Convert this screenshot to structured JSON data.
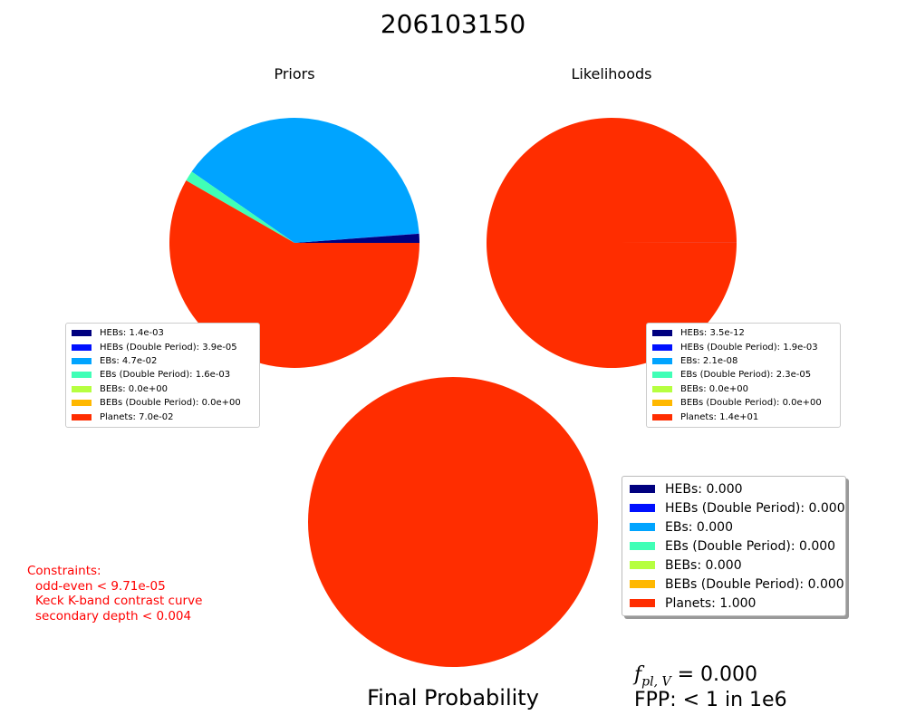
{
  "title": "206103150",
  "colors": {
    "HEBs": "#00007f",
    "HEBs (Double Period)": "#0010ff",
    "EBs": "#00a4ff",
    "EBs (Double Period)": "#40ffb6",
    "BEBs": "#b6ff40",
    "BEBs (Double Period)": "#ffb800",
    "Planets": "#ff2d00"
  },
  "chart_data": [
    {
      "type": "pie",
      "title": "Priors",
      "labels": [
        "HEBs",
        "HEBs (Double Period)",
        "EBs",
        "EBs (Double Period)",
        "BEBs",
        "BEBs (Double Period)",
        "Planets"
      ],
      "values": [
        0.0014,
        3.9e-05,
        0.047,
        0.0016,
        0.0,
        0.0,
        0.07
      ],
      "legend_labels": [
        "HEBs: 1.4e-03",
        "HEBs (Double Period): 3.9e-05",
        "EBs: 4.7e-02",
        "EBs (Double Period): 1.6e-03",
        "BEBs: 0.0e+00",
        "BEBs (Double Period): 0.0e+00",
        "Planets: 7.0e-02"
      ],
      "legend_placement": "lower-left"
    },
    {
      "type": "pie",
      "title": "Likelihoods",
      "labels": [
        "HEBs",
        "HEBs (Double Period)",
        "EBs",
        "EBs (Double Period)",
        "BEBs",
        "BEBs (Double Period)",
        "Planets"
      ],
      "values": [
        3.5e-12,
        0.0019,
        2.1e-08,
        2.3e-05,
        0.0,
        0.0,
        14.0
      ],
      "legend_labels": [
        "HEBs: 3.5e-12",
        "HEBs (Double Period): 1.9e-03",
        "EBs: 2.1e-08",
        "EBs (Double Period): 2.3e-05",
        "BEBs: 0.0e+00",
        "BEBs (Double Period): 0.0e+00",
        "Planets: 1.4e+01"
      ],
      "legend_placement": "lower-right"
    },
    {
      "type": "pie",
      "title": "Final Probability",
      "labels": [
        "HEBs",
        "HEBs (Double Period)",
        "EBs",
        "EBs (Double Period)",
        "BEBs",
        "BEBs (Double Period)",
        "Planets"
      ],
      "values": [
        0.0,
        0.0,
        0.0,
        0.0,
        0.0,
        0.0,
        1.0
      ],
      "legend_labels": [
        "HEBs: 0.000",
        "HEBs (Double Period): 0.000",
        "EBs: 0.000",
        "EBs (Double Period): 0.000",
        "BEBs: 0.000",
        "BEBs (Double Period): 0.000",
        "Planets: 1.000"
      ],
      "legend_placement": "right"
    }
  ],
  "constraints": {
    "header": "Constraints:",
    "lines": [
      "odd-even < 9.71e-05",
      "Keck K-band contrast curve",
      "secondary depth < 0.004"
    ]
  },
  "fpl": {
    "symbol": "f",
    "subscript": "pl, V",
    "value": "= 0.000"
  },
  "fpp": "FPP: < 1 in 1e6"
}
